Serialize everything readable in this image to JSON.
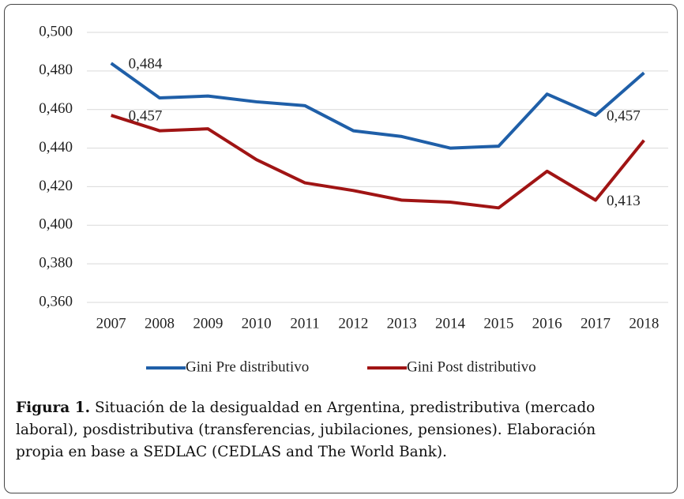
{
  "chart_data": {
    "type": "line",
    "categories": [
      "2007",
      "2008",
      "2009",
      "2010",
      "2011",
      "2012",
      "2013",
      "2014",
      "2015",
      "2016",
      "2017",
      "2018"
    ],
    "series": [
      {
        "name": "Gini Pre distributivo",
        "color": "#1f5fa8",
        "values": [
          0.484,
          0.466,
          0.467,
          0.464,
          0.462,
          0.449,
          0.446,
          0.44,
          0.441,
          0.468,
          0.457,
          0.479
        ],
        "value_labels": [
          "0,484",
          null,
          null,
          null,
          null,
          null,
          null,
          null,
          null,
          null,
          "0,457",
          null
        ]
      },
      {
        "name": "Gini Post distributivo",
        "color": "#a01414",
        "values": [
          0.457,
          0.449,
          0.45,
          0.434,
          0.422,
          0.418,
          0.413,
          0.412,
          0.409,
          0.428,
          0.413,
          0.444
        ],
        "value_labels": [
          "0,457",
          null,
          null,
          null,
          null,
          null,
          null,
          null,
          null,
          null,
          "0,413",
          null
        ]
      }
    ],
    "ylim": [
      0.36,
      0.5
    ],
    "yticks": [
      {
        "value": 0.36,
        "label": "0,360"
      },
      {
        "value": 0.38,
        "label": "0,380"
      },
      {
        "value": 0.4,
        "label": "0,400"
      },
      {
        "value": 0.42,
        "label": "0,420"
      },
      {
        "value": 0.44,
        "label": "0,440"
      },
      {
        "value": 0.46,
        "label": "0,460"
      },
      {
        "value": 0.48,
        "label": "0,480"
      },
      {
        "value": 0.5,
        "label": "0,500"
      }
    ],
    "grid": true,
    "legend": "bottom"
  },
  "caption": {
    "label": "Figura 1.",
    "text": "Situación de la desigualdad en Argentina, predistributiva (mercado laboral), posdistributiva (transferencias, jubilaciones, pensiones). Elaboración propia en base a SEDLAC (CEDLAS and The World Bank)."
  }
}
